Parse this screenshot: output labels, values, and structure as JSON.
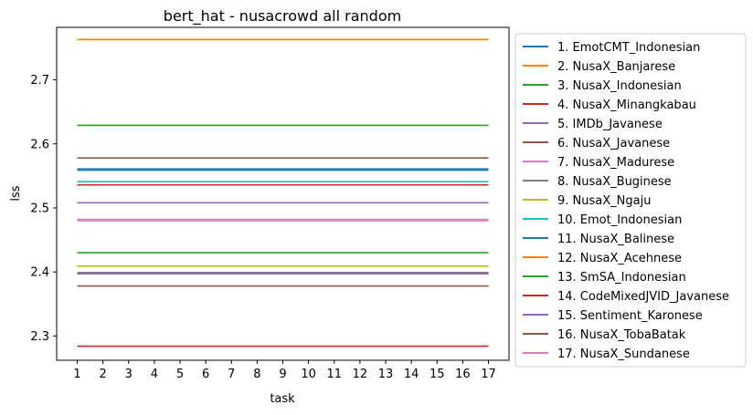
{
  "chart_data": {
    "type": "line",
    "title": "bert_hat - nusacrowd all random",
    "xlabel": "task",
    "ylabel": "lss",
    "x": [
      1,
      2,
      3,
      4,
      5,
      6,
      7,
      8,
      9,
      10,
      11,
      12,
      13,
      14,
      15,
      16,
      17
    ],
    "xticks": [
      "1",
      "2",
      "3",
      "4",
      "5",
      "6",
      "7",
      "8",
      "9",
      "10",
      "11",
      "12",
      "13",
      "14",
      "15",
      "16",
      "17"
    ],
    "ylim": [
      2.262,
      2.782
    ],
    "yticks": [
      2.3,
      2.4,
      2.5,
      2.6,
      2.7
    ],
    "ytick_labels": [
      "2.3",
      "2.4",
      "2.5",
      "2.6",
      "2.7"
    ],
    "grid": false,
    "legend_position": "outside-right",
    "series": [
      {
        "name": "1. EmotCMT_Indonesian",
        "color": "#1f77b4",
        "value": 2.561
      },
      {
        "name": "2. NusaX_Banjarese",
        "color": "#ff7f0e",
        "value": 2.763
      },
      {
        "name": "3. NusaX_Indonesian",
        "color": "#2ca02c",
        "value": 2.629
      },
      {
        "name": "4. NusaX_Minangkabau",
        "color": "#d62728",
        "value": 2.536
      },
      {
        "name": "5. IMDb_Javanese",
        "color": "#9467bd",
        "value": 2.508
      },
      {
        "name": "6. NusaX_Javanese",
        "color": "#8c564b",
        "value": 2.578
      },
      {
        "name": "7. NusaX_Madurese",
        "color": "#e377c2",
        "value": 2.482
      },
      {
        "name": "8. NusaX_Buginese",
        "color": "#7f7f7f",
        "value": 2.399
      },
      {
        "name": "9. NusaX_Ngaju",
        "color": "#bcbd22",
        "value": 2.409
      },
      {
        "name": "10. Emot_Indonesian",
        "color": "#17becf",
        "value": 2.541
      },
      {
        "name": "11. NusaX_Balinese",
        "color": "#1f77b4",
        "value": 2.559
      },
      {
        "name": "12. NusaX_Acehnese",
        "color": "#ff7f0e",
        "value": 2.763
      },
      {
        "name": "13. SmSA_Indonesian",
        "color": "#2ca02c",
        "value": 2.43
      },
      {
        "name": "14. CodeMixedJVID_Javanese",
        "color": "#d62728",
        "value": 2.284
      },
      {
        "name": "15. Sentiment_Karonese",
        "color": "#9467bd",
        "value": 2.397
      },
      {
        "name": "16. NusaX_TobaBatak",
        "color": "#8c564b",
        "value": 2.378
      },
      {
        "name": "17. NusaX_Sundanese",
        "color": "#e377c2",
        "value": 2.48
      }
    ]
  }
}
